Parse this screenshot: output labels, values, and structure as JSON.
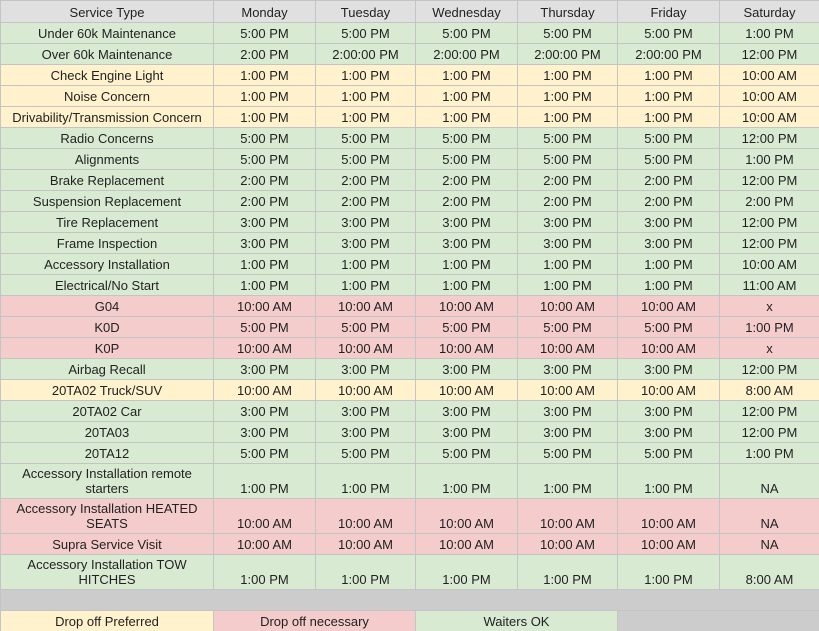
{
  "table": {
    "header": [
      "Service Type",
      "Monday",
      "Tuesday",
      "Wednesday",
      "Thursday",
      "Friday",
      "Saturday"
    ],
    "rows": [
      {
        "color": "#d9ead3",
        "cells": [
          "Under 60k Maintenance",
          "5:00 PM",
          "5:00 PM",
          "5:00 PM",
          "5:00 PM",
          "5:00 PM",
          "1:00 PM"
        ]
      },
      {
        "color": "#d9ead3",
        "cells": [
          "Over 60k Maintenance",
          "2:00 PM",
          "2:00:00 PM",
          "2:00:00 PM",
          "2:00:00 PM",
          "2:00:00 PM",
          "12:00 PM"
        ]
      },
      {
        "color": "#fff2cc",
        "cells": [
          "Check Engine Light",
          "1:00 PM",
          "1:00 PM",
          "1:00 PM",
          "1:00 PM",
          "1:00 PM",
          "10:00 AM"
        ]
      },
      {
        "color": "#fff2cc",
        "cells": [
          "Noise Concern",
          "1:00 PM",
          "1:00 PM",
          "1:00 PM",
          "1:00 PM",
          "1:00 PM",
          "10:00 AM"
        ]
      },
      {
        "color": "#fff2cc",
        "cells": [
          "Drivability/Transmission Concern",
          "1:00 PM",
          "1:00 PM",
          "1:00 PM",
          "1:00 PM",
          "1:00 PM",
          "10:00 AM"
        ]
      },
      {
        "color": "#d9ead3",
        "cells": [
          "Radio Concerns",
          "5:00 PM",
          "5:00 PM",
          "5:00 PM",
          "5:00 PM",
          "5:00 PM",
          "12:00 PM"
        ]
      },
      {
        "color": "#d9ead3",
        "cells": [
          "Alignments",
          "5:00 PM",
          "5:00 PM",
          "5:00 PM",
          "5:00 PM",
          "5:00 PM",
          "1:00 PM"
        ]
      },
      {
        "color": "#d9ead3",
        "cells": [
          "Brake Replacement",
          "2:00 PM",
          "2:00 PM",
          "2:00 PM",
          "2:00 PM",
          "2:00 PM",
          "12:00 PM"
        ]
      },
      {
        "color": "#d9ead3",
        "cells": [
          "Suspension Replacement",
          "2:00 PM",
          "2:00 PM",
          "2:00 PM",
          "2:00 PM",
          "2:00 PM",
          "2:00 PM"
        ]
      },
      {
        "color": "#d9ead3",
        "cells": [
          "Tire Replacement",
          "3:00 PM",
          "3:00 PM",
          "3:00 PM",
          "3:00 PM",
          "3:00 PM",
          "12:00 PM"
        ]
      },
      {
        "color": "#d9ead3",
        "cells": [
          "Frame Inspection",
          "3:00 PM",
          "3:00 PM",
          "3:00 PM",
          "3:00 PM",
          "3:00 PM",
          "12:00 PM"
        ]
      },
      {
        "color": "#d9ead3",
        "cells": [
          "Accessory Installation",
          "1:00 PM",
          "1:00 PM",
          "1:00 PM",
          "1:00 PM",
          "1:00 PM",
          "10:00 AM"
        ]
      },
      {
        "color": "#d9ead3",
        "cells": [
          "Electrical/No Start",
          "1:00 PM",
          "1:00 PM",
          "1:00 PM",
          "1:00 PM",
          "1:00 PM",
          "11:00 AM"
        ]
      },
      {
        "color": "#f4cccc",
        "cells": [
          "G04",
          "10:00 AM",
          "10:00 AM",
          "10:00 AM",
          "10:00 AM",
          "10:00 AM",
          "x"
        ]
      },
      {
        "color": "#f4cccc",
        "cells": [
          "K0D",
          "5:00 PM",
          "5:00 PM",
          "5:00 PM",
          "5:00 PM",
          "5:00 PM",
          "1:00 PM"
        ]
      },
      {
        "color": "#f4cccc",
        "cells": [
          "K0P",
          "10:00 AM",
          "10:00 AM",
          "10:00 AM",
          "10:00 AM",
          "10:00 AM",
          "x"
        ]
      },
      {
        "color": "#d9ead3",
        "cells": [
          "Airbag Recall",
          "3:00 PM",
          "3:00 PM",
          "3:00 PM",
          "3:00 PM",
          "3:00 PM",
          "12:00 PM"
        ]
      },
      {
        "color": "#fff2cc",
        "cells": [
          "20TA02 Truck/SUV",
          "10:00 AM",
          "10:00 AM",
          "10:00 AM",
          "10:00 AM",
          "10:00 AM",
          "8:00 AM"
        ]
      },
      {
        "color": "#d9ead3",
        "cells": [
          "20TA02 Car",
          "3:00 PM",
          "3:00 PM",
          "3:00 PM",
          "3:00 PM",
          "3:00 PM",
          "12:00 PM"
        ]
      },
      {
        "color": "#d9ead3",
        "cells": [
          "20TA03",
          "3:00 PM",
          "3:00 PM",
          "3:00 PM",
          "3:00 PM",
          "3:00 PM",
          "12:00 PM"
        ]
      },
      {
        "color": "#d9ead3",
        "cells": [
          "20TA12",
          "5:00 PM",
          "5:00 PM",
          "5:00 PM",
          "5:00 PM",
          "5:00 PM",
          "1:00 PM"
        ]
      },
      {
        "color": "#d9ead3",
        "cells": [
          "Accessory Installation remote starters",
          "1:00 PM",
          "1:00 PM",
          "1:00 PM",
          "1:00 PM",
          "1:00 PM",
          "NA"
        ]
      },
      {
        "color": "#f4cccc",
        "cells": [
          "Accessory Installation HEATED SEATS",
          "10:00 AM",
          "10:00 AM",
          "10:00 AM",
          "10:00 AM",
          "10:00 AM",
          "NA"
        ]
      },
      {
        "color": "#f4cccc",
        "cells": [
          "Supra Service Visit",
          "10:00 AM",
          "10:00 AM",
          "10:00 AM",
          "10:00 AM",
          "10:00 AM",
          "NA"
        ]
      },
      {
        "color": "#d9ead3",
        "cells": [
          "Accessory Installation TOW HITCHES",
          "1:00 PM",
          "1:00 PM",
          "1:00 PM",
          "1:00 PM",
          "1:00 PM",
          "8:00 AM"
        ]
      }
    ]
  },
  "legend": [
    {
      "label": "Drop off Preferred",
      "color": "#fff2cc"
    },
    {
      "label": "Drop off necessary",
      "color": "#f4cccc"
    },
    {
      "label": "Waiters OK",
      "color": "#d9ead3"
    }
  ]
}
